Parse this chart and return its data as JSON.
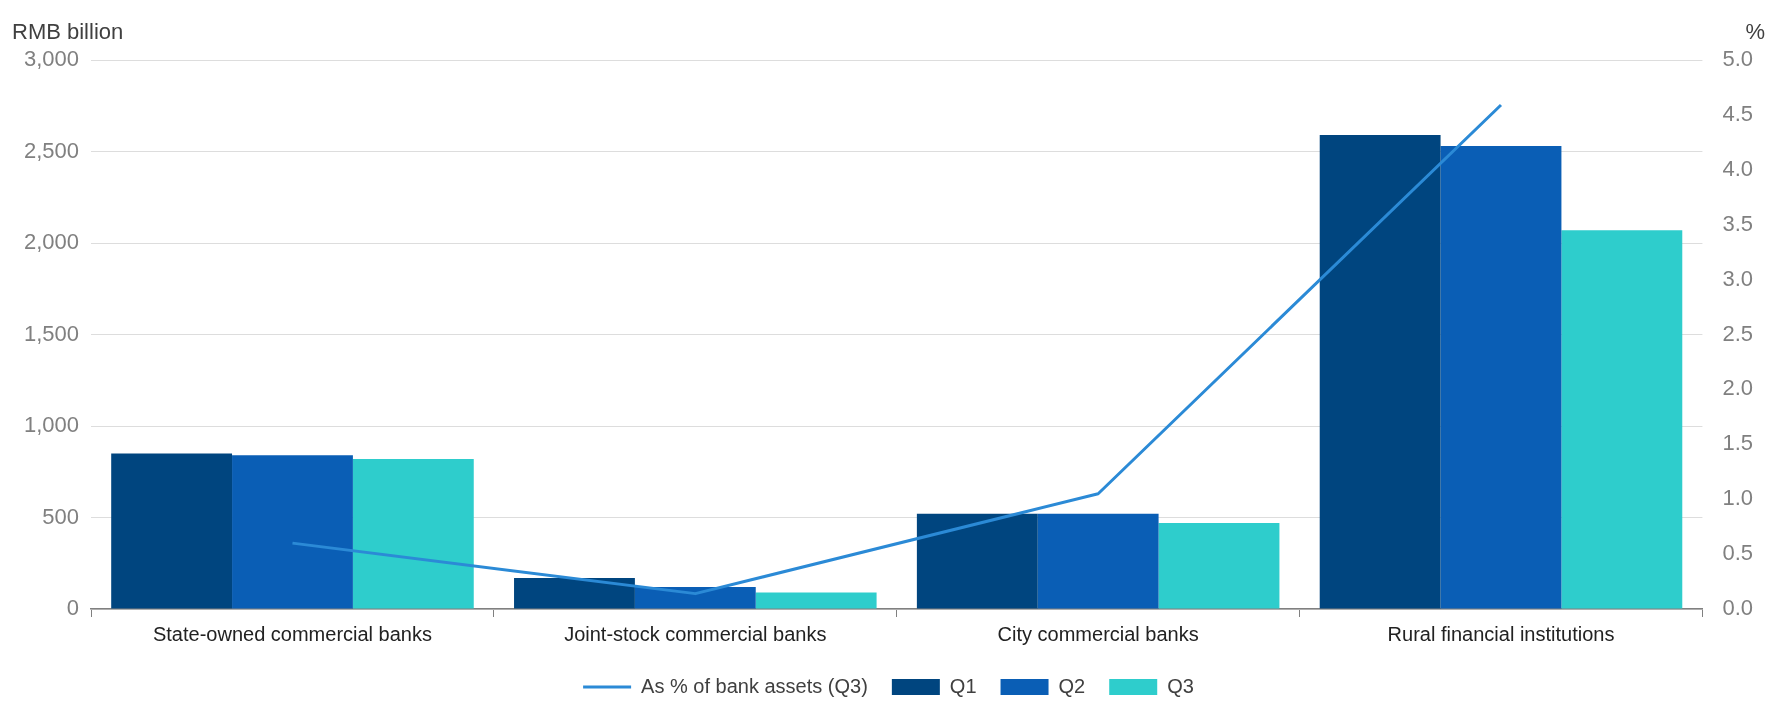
{
  "chart_data": {
    "type": "bar",
    "ylabel": "RMB billion",
    "y2label": "%",
    "categories": [
      "State-owned commercial banks",
      "Joint-stock commercial banks",
      "City commercial banks",
      "Rural financial institutions"
    ],
    "series": [
      {
        "name": "Q1",
        "color": "#00457f",
        "values": [
          850,
          170,
          520,
          2590
        ]
      },
      {
        "name": "Q2",
        "color": "#0a5eb5",
        "values": [
          840,
          120,
          520,
          2530
        ]
      },
      {
        "name": "Q3",
        "color": "#2ecdcc",
        "values": [
          820,
          90,
          470,
          2070
        ]
      },
      {
        "name": "As % of bank assets (Q3)",
        "type": "line",
        "axis": "y2",
        "color": "#2b8ad6",
        "values": [
          0.6,
          0.14,
          1.05,
          4.59
        ]
      }
    ],
    "ylim": [
      0,
      3000
    ],
    "yticks": [
      {
        "value": 0,
        "label": "0"
      },
      {
        "value": 500,
        "label": "500"
      },
      {
        "value": 1000,
        "label": "1,000"
      },
      {
        "value": 1500,
        "label": "1,500"
      },
      {
        "value": 2000,
        "label": "2,000"
      },
      {
        "value": 2500,
        "label": "2,500"
      },
      {
        "value": 3000,
        "label": "3,000"
      }
    ],
    "y2lim": [
      0,
      5
    ],
    "y2ticks": [
      {
        "value": 0,
        "label": "0.0"
      },
      {
        "value": 0.5,
        "label": "0.5"
      },
      {
        "value": 1,
        "label": "1.0"
      },
      {
        "value": 1.5,
        "label": "1.5"
      },
      {
        "value": 2,
        "label": "2.0"
      },
      {
        "value": 2.5,
        "label": "2.5"
      },
      {
        "value": 3,
        "label": "3.0"
      },
      {
        "value": 3.5,
        "label": "3.5"
      },
      {
        "value": 4,
        "label": "4.0"
      },
      {
        "value": 4.5,
        "label": "4.5"
      },
      {
        "value": 5,
        "label": "5.0"
      }
    ],
    "grid": "y",
    "legend": "bottom",
    "marker": "none",
    "line_style": "solid"
  }
}
